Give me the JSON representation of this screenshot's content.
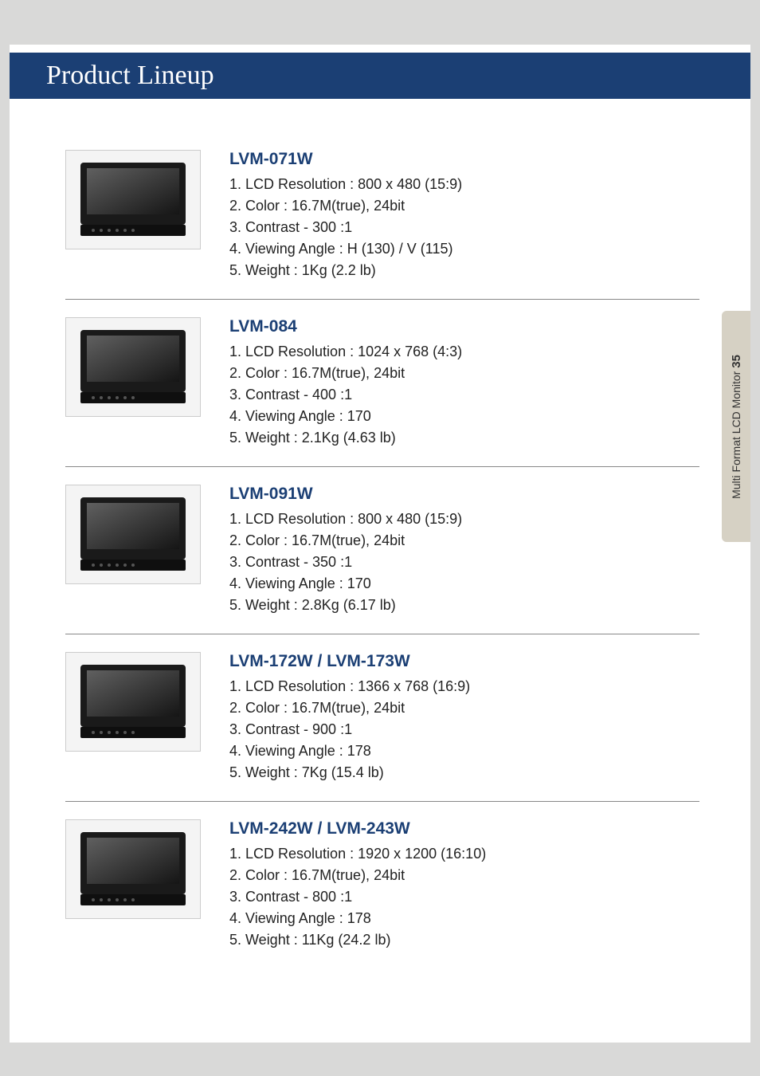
{
  "page": {
    "title": "Product Lineup",
    "background_color": "#d9d9d8",
    "page_color": "#ffffff",
    "title_bar_color": "#1b3f74",
    "title_text_color": "#ffffff",
    "title_font_family": "Georgia",
    "title_font_size_pt": 26,
    "body_font_family": "Helvetica",
    "model_color": "#1b3f74",
    "model_font_size_pt": 16,
    "spec_font_size_pt": 13,
    "spec_text_color": "#222222",
    "divider_color": "#888888"
  },
  "side_tab": {
    "text": "Multi Format LCD Monitor",
    "page_number": "35",
    "background_color": "#d6d1c4",
    "text_color": "#333333",
    "font_size_pt": 10
  },
  "products": [
    {
      "model": "LVM-071W",
      "specs": [
        "1. LCD Resolution  :  800 x 480 (15:9)",
        "2. Color  :  16.7M(true), 24bit",
        "3. Contrast  -  300 :1",
        "4. Viewing Angle  :  H (130) / V (115)",
        "5. Weight  :  1Kg (2.2 lb)"
      ]
    },
    {
      "model": "LVM-084",
      "specs": [
        "1. LCD Resolution  :  1024 x 768 (4:3)",
        "2. Color  :  16.7M(true), 24bit",
        "3. Contrast  -  400 :1",
        "4. Viewing Angle  :  170",
        "5. Weight  :  2.1Kg (4.63 lb)"
      ]
    },
    {
      "model": "LVM-091W",
      "specs": [
        "1. LCD Resolution  :  800 x 480 (15:9)",
        "2. Color  :  16.7M(true), 24bit",
        "3. Contrast  -  350 :1",
        "4. Viewing Angle  :  170",
        "5. Weight  :  2.8Kg (6.17 lb)"
      ]
    },
    {
      "model": "LVM-172W / LVM-173W",
      "specs": [
        "1. LCD Resolution  :  1366 x 768 (16:9)",
        "2. Color  :  16.7M(true), 24bit",
        "3. Contrast  -  900 :1",
        "4. Viewing Angle  :  178",
        "5. Weight  :  7Kg (15.4 lb)"
      ]
    },
    {
      "model": "LVM-242W / LVM-243W",
      "specs": [
        "1. LCD Resolution  :  1920 x 1200 (16:10)",
        "2. Color  :  16.7M(true), 24bit",
        "3. Contrast  -  800 :1",
        "4. Viewing Angle  :  178",
        "5. Weight  :  11Kg (24.2 lb)"
      ]
    }
  ]
}
